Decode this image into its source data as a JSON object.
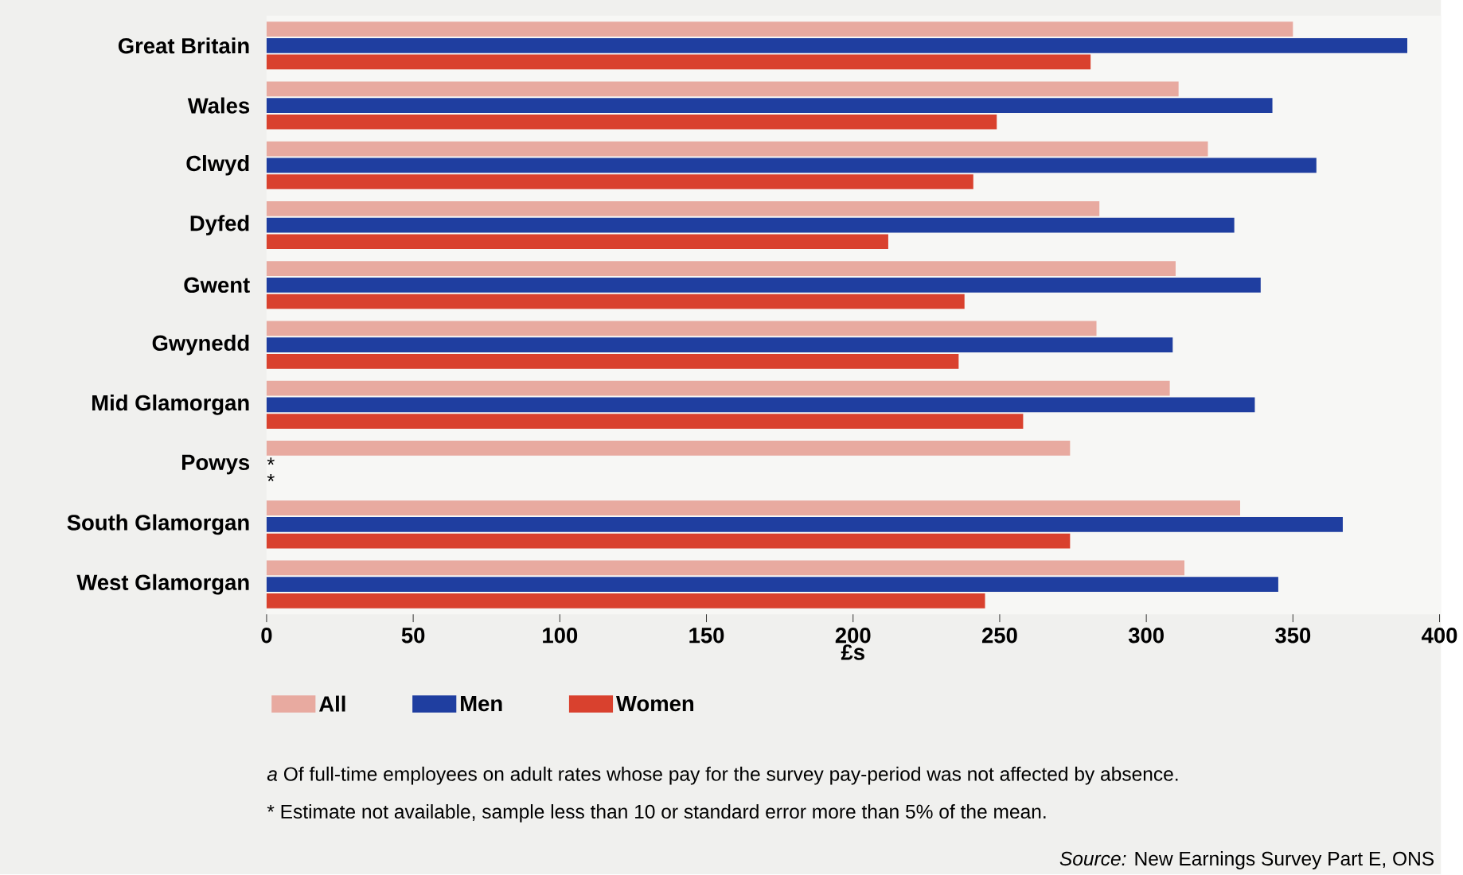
{
  "chart_data": {
    "type": "bar",
    "orientation": "horizontal",
    "xlabel": "£s",
    "categories": [
      "Great Britain",
      "Wales",
      "Clwyd",
      "Dyfed",
      "Gwent",
      "Gwynedd",
      "Mid Glamorgan",
      "Powys",
      "South Glamorgan",
      "West Glamorgan"
    ],
    "series": [
      {
        "name": "All",
        "color": "#e8aaa0",
        "values": [
          350,
          311,
          321,
          284,
          310,
          283,
          308,
          274,
          332,
          313
        ]
      },
      {
        "name": "Men",
        "color": "#1f3ea0",
        "values": [
          389,
          343,
          358,
          330,
          339,
          309,
          337,
          null,
          367,
          345
        ]
      },
      {
        "name": "Women",
        "color": "#d9412e",
        "values": [
          281,
          249,
          241,
          212,
          238,
          236,
          258,
          null,
          274,
          245
        ]
      }
    ],
    "xlim": [
      0,
      400
    ],
    "xticks": [
      0,
      50,
      100,
      150,
      200,
      250,
      300,
      350,
      400
    ],
    "grid": false,
    "legend": "bottom",
    "annotations": [
      "*",
      "*",
      "*a* Of full-time employees on adult rates whose pay for the survey pay-period was not affected by absence.",
      "* Estimate not available, sample less than 10 or standard error more than 5% of the mean.",
      "*Source:* New Earnings Survey Part E, ONS"
    ]
  }
}
